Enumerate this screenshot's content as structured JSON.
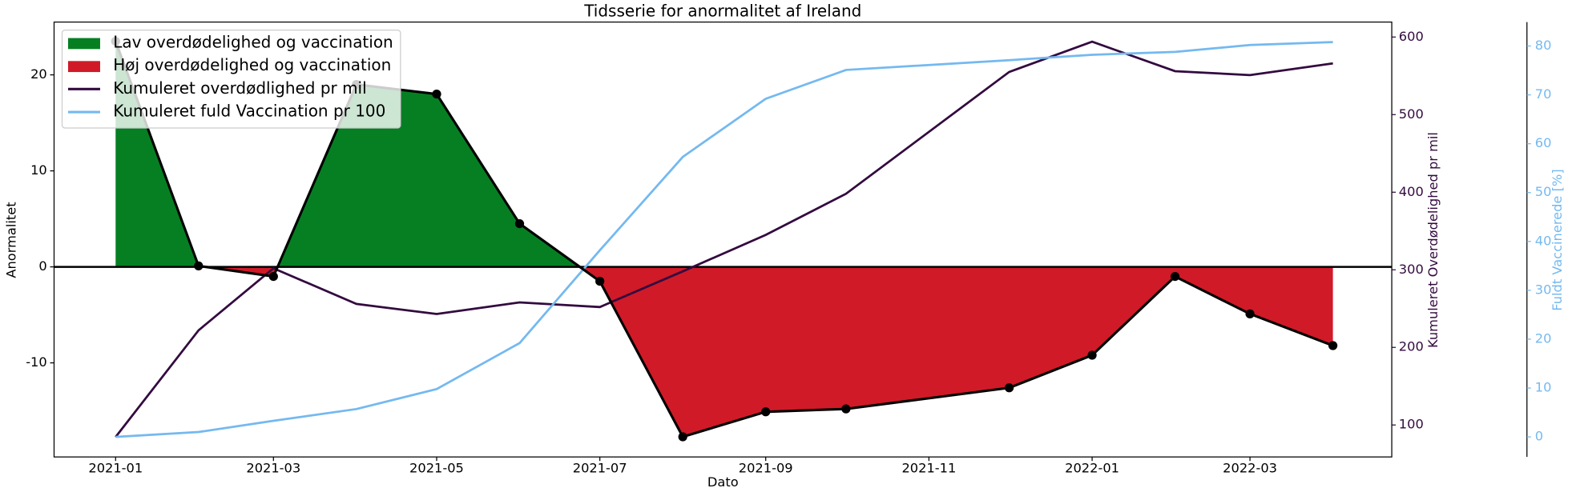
{
  "chart_data": {
    "type": "line",
    "title": "Tidsserie for anormalitet af Ireland",
    "xlabel": "Dato",
    "ylabel": "Anormalitet",
    "y2label": "Kumuleret Overdødelighed pr mil",
    "y3label": "Fuldt Vaccinerede [%]",
    "x": [
      "2021-01",
      "2021-02",
      "2021-03",
      "2021-04",
      "2021-05",
      "2021-06",
      "2021-07",
      "2021-08",
      "2021-09",
      "2021-10",
      "2021-12",
      "2022-01",
      "2022-02",
      "2022-03",
      "2022-04"
    ],
    "xlim": [
      "2020-12-09",
      "2022-04-23"
    ],
    "xticks": [
      "2021-01",
      "2021-03",
      "2021-05",
      "2021-07",
      "2021-09",
      "2021-11",
      "2022-01",
      "2022-03"
    ],
    "ylim": [
      -19.8,
      25.5
    ],
    "yticks": [
      -10,
      0,
      10,
      20
    ],
    "y2lim": [
      58.8,
      619.3
    ],
    "y2ticks": [
      100,
      200,
      300,
      400,
      500,
      600
    ],
    "y3lim": [
      -4.1,
      84.9
    ],
    "y3ticks": [
      0,
      10,
      20,
      30,
      40,
      50,
      60,
      70,
      80
    ],
    "y2color": "#330a3f",
    "y3color": "#74b9f0",
    "hline": 0,
    "anomaly": {
      "color": "#000000",
      "values": [
        23.5,
        0.1,
        -1.0,
        19.0,
        18.0,
        4.5,
        -1.5,
        -17.7,
        -15.1,
        -14.8,
        -12.6,
        -9.2,
        -1.0,
        -4.9,
        -8.2
      ]
    },
    "fills": [
      {
        "name": "Lav overdødelighed og vaccination",
        "color": "#067f23",
        "side": "positive"
      },
      {
        "name": "Høj overdødelighed og vaccination",
        "color": "#d01a28",
        "side": "negative"
      }
    ],
    "series": [
      {
        "name": "Kumuleret overdødlighed pr mil",
        "color": "#330a3f",
        "axis": "y2",
        "values": [
          84.5,
          222,
          302,
          256,
          243,
          258,
          252,
          298,
          345,
          398,
          555,
          594,
          556,
          551,
          566
        ]
      },
      {
        "name": "Kumuleret fuld Vaccination pr 100",
        "color": "#74b9f0",
        "axis": "y3",
        "values": [
          0,
          1.0,
          3.3,
          5.7,
          9.8,
          19.2,
          38.2,
          57.3,
          69.2,
          75.1,
          77.1,
          78.2,
          78.8,
          80.2,
          80.8
        ]
      }
    ]
  }
}
